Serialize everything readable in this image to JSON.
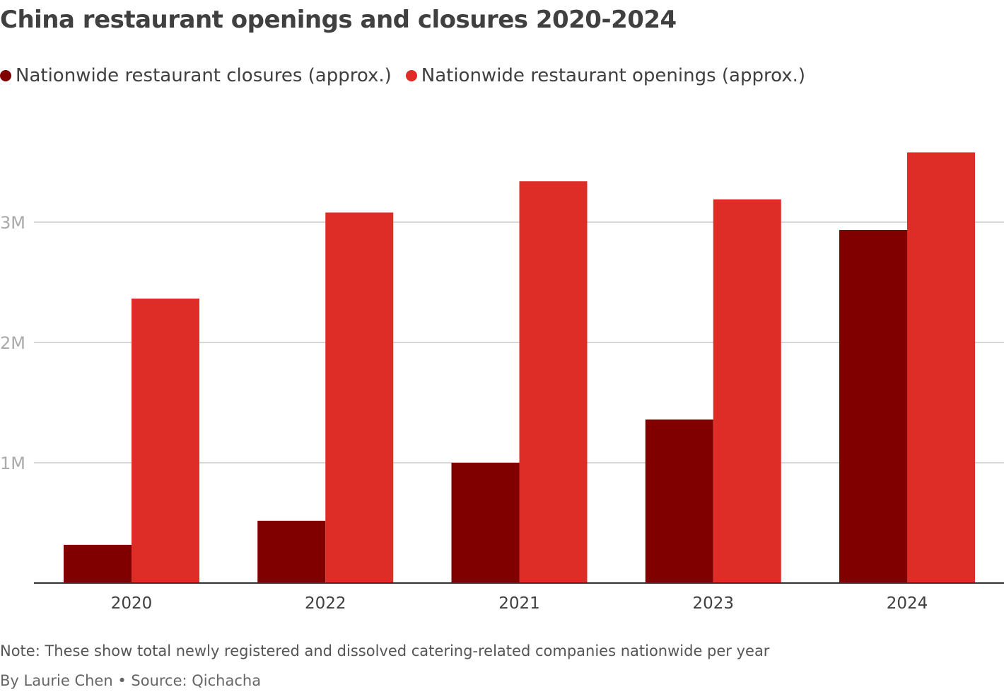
{
  "chart_data": {
    "type": "bar",
    "title": "China restaurant openings and closures 2020-2024",
    "categories": [
      "2020",
      "2022",
      "2021",
      "2023",
      "2024"
    ],
    "series": [
      {
        "name": "Nationwide restaurant closures (approx.)",
        "color": "#800000",
        "values": [
          318000,
          518000,
          1000000,
          1360000,
          2935000
        ]
      },
      {
        "name": "Nationwide restaurant openings (approx.)",
        "color": "#de2d26",
        "values": [
          2365000,
          3080000,
          3340000,
          3190000,
          3580000
        ]
      }
    ],
    "ylim": [
      0,
      3600000
    ],
    "yticks": [
      {
        "value": 1000000,
        "label": "1M"
      },
      {
        "value": 2000000,
        "label": "2M"
      },
      {
        "value": 3000000,
        "label": "3M"
      }
    ],
    "xlabel": "",
    "ylabel": "",
    "grid": true,
    "legend": "top-left"
  },
  "note": "Note: These show total newly registered and dissolved catering-related companies nationwide per year",
  "byline": "By Laurie Chen • Source: Qichacha"
}
